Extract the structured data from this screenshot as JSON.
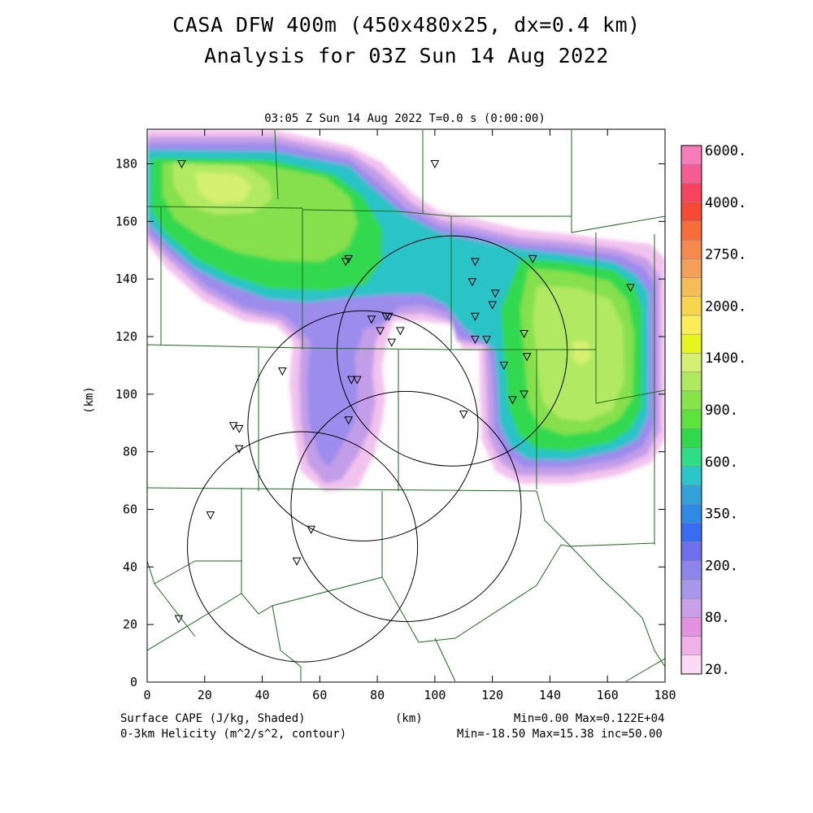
{
  "header": {
    "title": "CASA DFW 400m (450x480x25, dx=0.4 km)",
    "subtitle": "Analysis for 03Z Sun 14 Aug 2022",
    "time_label": "03:05 Z Sun 14 Aug 2022    T=0.0 s (0:00:00)"
  },
  "footer": {
    "field1": "Surface CAPE (J/kg, Shaded)",
    "field2": "0-3km Helicity (m^2/s^2, contour)",
    "xunit": "(km)",
    "stats1": "Min=0.00 Max=0.122E+04",
    "stats2": "Min=-18.50 Max=15.38 inc=50.00"
  },
  "chart_data": {
    "type": "heatmap",
    "xlabel": "",
    "ylabel": "(km)",
    "xlim": [
      0,
      180
    ],
    "ylim": [
      0,
      192
    ],
    "x_ticks": [
      "0",
      "20",
      "40",
      "60",
      "80",
      "100",
      "120",
      "140",
      "160",
      "180"
    ],
    "y_ticks": [
      "0",
      "20",
      "40",
      "60",
      "80",
      "100",
      "120",
      "140",
      "160",
      "180"
    ],
    "colorbar": {
      "labels": [
        "20.",
        "80.",
        "200.",
        "350.",
        "600.",
        "900.",
        "1400.",
        "2000.",
        "2750.",
        "4000.",
        "6000."
      ],
      "colors": [
        "#fbdaf6",
        "#f0b0e8",
        "#e392e0",
        "#c9a0e8",
        "#a898ec",
        "#8c86ec",
        "#6f6ff0",
        "#3a6cf2",
        "#2f8ae6",
        "#32a2d8",
        "#2cc6c9",
        "#2edd86",
        "#32d84c",
        "#5de43c",
        "#86e348",
        "#b0e860",
        "#d5f070",
        "#e6f522",
        "#fbec5a",
        "#f7d54e",
        "#f5bd58",
        "#f5a05a",
        "#f7894e",
        "#f76e3a",
        "#f74a34",
        "#f7445e",
        "#f65c92",
        "#f77cba"
      ]
    },
    "cape_regions": [
      {
        "name": "northwest",
        "level": "900-1100",
        "center": [
          20,
          172
        ]
      },
      {
        "name": "east",
        "level": "900-1100",
        "center": [
          150,
          115
        ]
      },
      {
        "name": "south-central",
        "level": "80-200",
        "center": [
          70,
          95
        ]
      }
    ],
    "radar_circles": [
      {
        "cx": 106,
        "cy": 115,
        "r": 40
      },
      {
        "cx": 75,
        "cy": 89,
        "r": 40
      },
      {
        "cx": 90,
        "cy": 61,
        "r": 40
      },
      {
        "cx": 54,
        "cy": 47,
        "r": 40
      }
    ],
    "stations": [
      [
        12,
        180
      ],
      [
        100,
        180
      ],
      [
        70,
        147
      ],
      [
        69,
        146
      ],
      [
        114,
        146
      ],
      [
        134,
        147
      ],
      [
        113,
        139
      ],
      [
        168,
        137
      ],
      [
        121,
        135
      ],
      [
        120,
        131
      ],
      [
        114,
        127
      ],
      [
        83,
        127
      ],
      [
        84,
        127
      ],
      [
        78,
        126
      ],
      [
        81,
        122
      ],
      [
        88,
        122
      ],
      [
        131,
        121
      ],
      [
        114,
        119
      ],
      [
        118,
        119
      ],
      [
        85,
        118
      ],
      [
        132,
        113
      ],
      [
        124,
        110
      ],
      [
        47,
        108
      ],
      [
        71,
        105
      ],
      [
        73,
        105
      ],
      [
        131,
        100
      ],
      [
        127,
        98
      ],
      [
        110,
        93
      ],
      [
        70,
        91
      ],
      [
        30,
        89
      ],
      [
        32,
        88
      ],
      [
        32,
        81
      ],
      [
        22,
        58
      ],
      [
        57,
        53
      ],
      [
        52,
        42
      ],
      [
        11,
        22
      ]
    ],
    "helicity_stats": {
      "min": -18.5,
      "max": 15.38,
      "inc": 50.0
    },
    "cape_stats": {
      "min": 0.0,
      "max": 1220
    }
  }
}
